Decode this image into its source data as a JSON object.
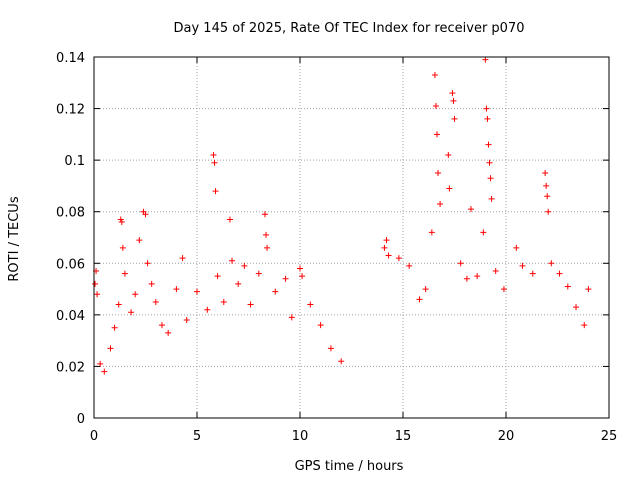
{
  "chart_data": {
    "type": "scatter",
    "title": "Day 145 of 2025, Rate Of TEC Index for receiver p070",
    "xlabel": "GPS time / hours",
    "ylabel": "ROTI / TECUs",
    "xlim": [
      0,
      25
    ],
    "ylim": [
      0,
      0.14
    ],
    "xticks": [
      0,
      5,
      10,
      15,
      20,
      25
    ],
    "xtick_labels": [
      "0",
      "5",
      "10",
      "15",
      "20",
      "25"
    ],
    "yticks": [
      0,
      0.02,
      0.04,
      0.06,
      0.08,
      0.1,
      0.12,
      0.14
    ],
    "ytick_labels": [
      "0",
      "0.02",
      "0.04",
      "0.06",
      "0.08",
      "0.1",
      "0.12",
      "0.14"
    ],
    "grid": true,
    "marker": "+",
    "series": [
      {
        "name": "p070",
        "color": "#ff0000",
        "data_gap": [
          12.1,
          14.1
        ],
        "points": [
          [
            0.05,
            0.052
          ],
          [
            0.1,
            0.057
          ],
          [
            0.15,
            0.048
          ],
          [
            0.3,
            0.021
          ],
          [
            0.5,
            0.018
          ],
          [
            0.8,
            0.027
          ],
          [
            1.0,
            0.035
          ],
          [
            1.2,
            0.044
          ],
          [
            1.3,
            0.077
          ],
          [
            1.35,
            0.076
          ],
          [
            1.4,
            0.066
          ],
          [
            1.5,
            0.056
          ],
          [
            1.8,
            0.041
          ],
          [
            2.0,
            0.048
          ],
          [
            2.2,
            0.069
          ],
          [
            2.4,
            0.08
          ],
          [
            2.5,
            0.079
          ],
          [
            2.6,
            0.06
          ],
          [
            2.8,
            0.052
          ],
          [
            3.0,
            0.045
          ],
          [
            3.3,
            0.036
          ],
          [
            3.6,
            0.033
          ],
          [
            4.0,
            0.05
          ],
          [
            4.3,
            0.062
          ],
          [
            4.5,
            0.038
          ],
          [
            5.0,
            0.049
          ],
          [
            5.5,
            0.042
          ],
          [
            5.8,
            0.102
          ],
          [
            5.85,
            0.099
          ],
          [
            5.9,
            0.088
          ],
          [
            6.0,
            0.055
          ],
          [
            6.3,
            0.045
          ],
          [
            6.6,
            0.077
          ],
          [
            6.7,
            0.061
          ],
          [
            7.0,
            0.052
          ],
          [
            7.3,
            0.059
          ],
          [
            7.6,
            0.044
          ],
          [
            8.0,
            0.056
          ],
          [
            8.3,
            0.079
          ],
          [
            8.35,
            0.071
          ],
          [
            8.4,
            0.066
          ],
          [
            8.8,
            0.049
          ],
          [
            9.3,
            0.054
          ],
          [
            9.6,
            0.039
          ],
          [
            10.0,
            0.058
          ],
          [
            10.1,
            0.055
          ],
          [
            10.5,
            0.044
          ],
          [
            11.0,
            0.036
          ],
          [
            11.5,
            0.027
          ],
          [
            12.0,
            0.022
          ],
          [
            14.1,
            0.066
          ],
          [
            14.2,
            0.069
          ],
          [
            14.3,
            0.063
          ],
          [
            14.8,
            0.062
          ],
          [
            15.3,
            0.059
          ],
          [
            15.8,
            0.046
          ],
          [
            16.1,
            0.05
          ],
          [
            16.4,
            0.072
          ],
          [
            16.55,
            0.133
          ],
          [
            16.6,
            0.121
          ],
          [
            16.65,
            0.11
          ],
          [
            16.7,
            0.095
          ],
          [
            16.8,
            0.083
          ],
          [
            17.2,
            0.102
          ],
          [
            17.25,
            0.089
          ],
          [
            17.4,
            0.126
          ],
          [
            17.45,
            0.123
          ],
          [
            17.5,
            0.116
          ],
          [
            17.8,
            0.06
          ],
          [
            18.1,
            0.054
          ],
          [
            18.3,
            0.081
          ],
          [
            18.6,
            0.055
          ],
          [
            18.9,
            0.072
          ],
          [
            19.0,
            0.139
          ],
          [
            19.05,
            0.12
          ],
          [
            19.1,
            0.116
          ],
          [
            19.15,
            0.106
          ],
          [
            19.2,
            0.099
          ],
          [
            19.25,
            0.093
          ],
          [
            19.3,
            0.085
          ],
          [
            19.5,
            0.057
          ],
          [
            19.9,
            0.05
          ],
          [
            20.5,
            0.066
          ],
          [
            20.8,
            0.059
          ],
          [
            21.3,
            0.056
          ],
          [
            21.9,
            0.095
          ],
          [
            21.95,
            0.09
          ],
          [
            22.0,
            0.086
          ],
          [
            22.05,
            0.08
          ],
          [
            22.2,
            0.06
          ],
          [
            22.6,
            0.056
          ],
          [
            23.0,
            0.051
          ],
          [
            23.4,
            0.043
          ],
          [
            23.8,
            0.036
          ],
          [
            24.0,
            0.05
          ]
        ]
      }
    ]
  }
}
